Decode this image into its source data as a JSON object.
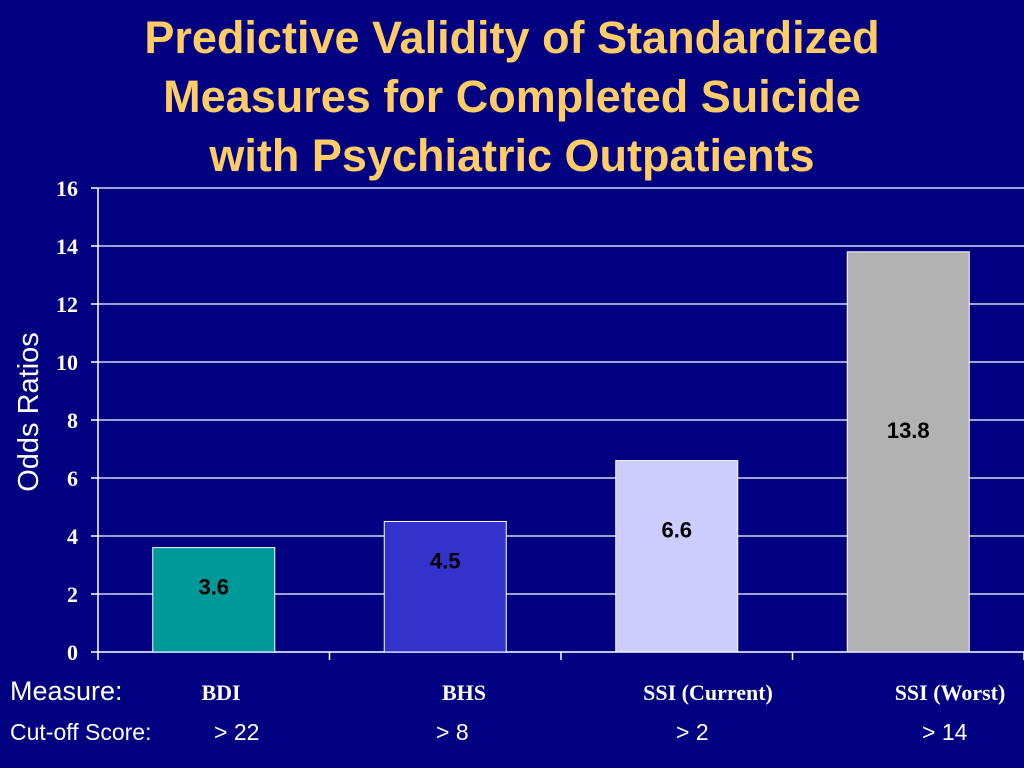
{
  "title_lines": [
    "Predictive Validity of Standardized",
    "Measures for Completed Suicide",
    "with Psychiatric Outpatients"
  ],
  "colors": {
    "background": "#000080",
    "title": "#ffcc66",
    "text": "#ffffff",
    "gridline": "#ffffff"
  },
  "measure_label": "Measure:",
  "cutoff_label": "Cut-off Score:",
  "measures": [
    "BDI",
    "BHS",
    "SSI (Current)",
    "SSI (Worst)"
  ],
  "cutoffs": [
    "> 22",
    "> 8",
    "> 2",
    "> 14"
  ],
  "chart_data": {
    "type": "bar",
    "categories": [
      "BDI",
      "BHS",
      "SSI (Current)",
      "SSI (Worst)"
    ],
    "values": [
      3.6,
      4.5,
      6.6,
      13.8
    ],
    "data_labels": [
      "3.6",
      "4.5",
      "6.6",
      "13.8"
    ],
    "bar_colors": [
      "#009999",
      "#3333cc",
      "#ccccff",
      "#b2b2b2"
    ],
    "ylabel": "Odds Ratios",
    "ylim": [
      0,
      16
    ],
    "yticks": [
      0,
      2,
      4,
      6,
      8,
      10,
      12,
      14,
      16
    ],
    "grid": true,
    "legend": false
  }
}
